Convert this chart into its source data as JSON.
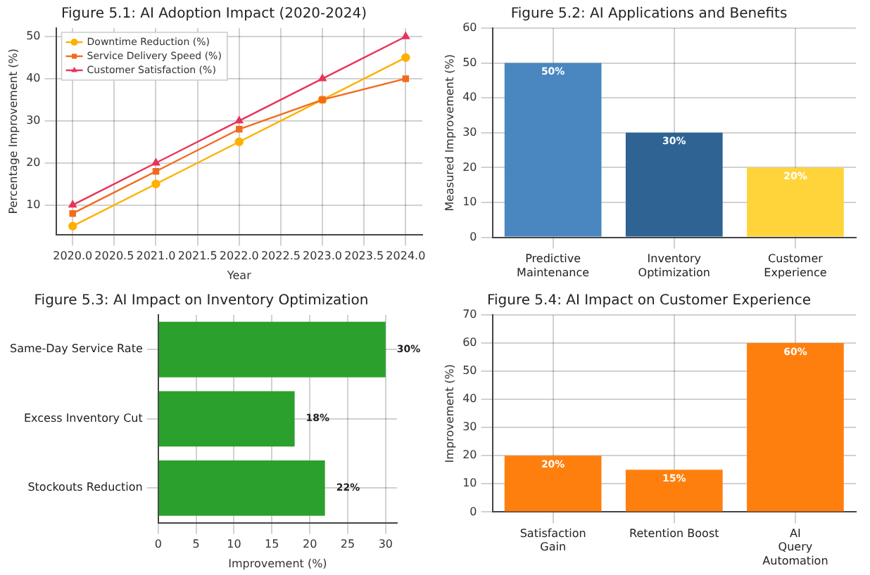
{
  "chart_data": [
    {
      "type": "line",
      "title": "Figure 5.1: AI Adoption Impact (2020-2024)",
      "xlabel": "Year",
      "ylabel": "Percentage Improvement (%)",
      "x": [
        2020,
        2021,
        2022,
        2023,
        2024
      ],
      "xlim": [
        2019.8,
        2024.2
      ],
      "xticks": [
        {
          "value": 2020,
          "label": "2020.0"
        },
        {
          "value": 2020.5,
          "label": "2020.5"
        },
        {
          "value": 2021,
          "label": "2021.0"
        },
        {
          "value": 2021.5,
          "label": "2021.5"
        },
        {
          "value": 2022,
          "label": "2022.0"
        },
        {
          "value": 2022.5,
          "label": "2022.5"
        },
        {
          "value": 2023,
          "label": "2023.0"
        },
        {
          "value": 2023.5,
          "label": "2023.5"
        },
        {
          "value": 2024,
          "label": "2024.0"
        }
      ],
      "ylim": [
        3,
        52
      ],
      "yticks": [
        10,
        20,
        30,
        40,
        50
      ],
      "grid": true,
      "legend": "top left",
      "series": [
        {
          "name": "Downtime Reduction (%)",
          "color": "#ffb000",
          "marker": "circle",
          "values": [
            5,
            15,
            25,
            35,
            45
          ]
        },
        {
          "name": "Service Delivery Speed (%)",
          "color": "#f26b1d",
          "marker": "square",
          "values": [
            8,
            18,
            28,
            35,
            40
          ]
        },
        {
          "name": "Customer Satisfaction (%)",
          "color": "#e8335a",
          "marker": "triangle",
          "values": [
            10,
            20,
            30,
            40,
            50
          ]
        }
      ]
    },
    {
      "type": "bar",
      "title": "Figure 5.2: AI Applications and Benefits",
      "ylabel": "Measured Improvement (%)",
      "categories": [
        "Predictive Maintenance",
        "Inventory Optimization",
        "Customer Experience"
      ],
      "values": [
        50,
        30,
        20
      ],
      "colors": [
        "#4a87c0",
        "#2e6394",
        "#ffd43b"
      ],
      "value_labels": [
        "50%",
        "30%",
        "20%"
      ],
      "ylim": [
        0,
        60
      ],
      "yticks": [
        0,
        10,
        20,
        30,
        40,
        50,
        60
      ],
      "grid": true
    },
    {
      "type": "bar",
      "orientation": "horizontal",
      "title": "Figure 5.3: AI Impact on Inventory Optimization",
      "xlabel": "Improvement (%)",
      "categories": [
        "Same-Day Service Rate",
        "Excess Inventory Cut",
        "Stockouts Reduction"
      ],
      "values": [
        30,
        18,
        22
      ],
      "color": "#2ca02c",
      "value_labels": [
        "30%",
        "18%",
        "22%"
      ],
      "xlim": [
        0,
        31.5
      ],
      "xticks": [
        0,
        5,
        10,
        15,
        20,
        25,
        30
      ],
      "grid": true
    },
    {
      "type": "bar",
      "title": "Figure 5.4: AI Impact on Customer Experience",
      "ylabel": "Improvement (%)",
      "categories": [
        "Satisfaction Gain",
        "Retention Boost",
        "AI Query Automation"
      ],
      "values": [
        20,
        15,
        60
      ],
      "color": "#ff7f0e",
      "value_labels": [
        "20%",
        "15%",
        "60%"
      ],
      "ylim": [
        0,
        70
      ],
      "yticks": [
        0,
        10,
        20,
        30,
        40,
        50,
        60,
        70
      ],
      "grid": true
    }
  ]
}
